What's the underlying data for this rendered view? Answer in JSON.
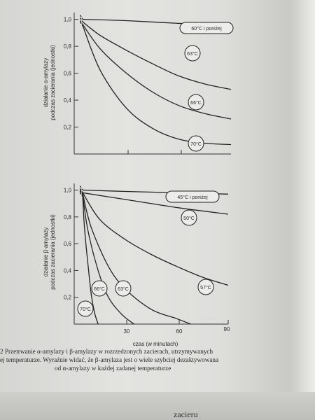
{
  "chart_data": [
    {
      "type": "line",
      "ylabel_lines": [
        "działanie α-amylazy",
        "podczas zacierania (jednostki)"
      ],
      "yticks": [
        "1,0",
        "0,8",
        "0,6",
        "0,4",
        "0,2"
      ],
      "ylim": [
        0,
        1.05
      ],
      "xlim": [
        0,
        90
      ],
      "series": [
        {
          "name": "60°C i poniżej",
          "points": [
            [
              5,
              1.0
            ],
            [
              30,
              0.99
            ],
            [
              60,
              0.97
            ],
            [
              90,
              0.95
            ]
          ]
        },
        {
          "name": "63°C",
          "points": [
            [
              5,
              0.98
            ],
            [
              15,
              0.88
            ],
            [
              30,
              0.77
            ],
            [
              45,
              0.67
            ],
            [
              60,
              0.58
            ],
            [
              75,
              0.52
            ],
            [
              90,
              0.48
            ]
          ]
        },
        {
          "name": "66°C",
          "points": [
            [
              5,
              0.96
            ],
            [
              15,
              0.78
            ],
            [
              30,
              0.6
            ],
            [
              45,
              0.46
            ],
            [
              60,
              0.36
            ],
            [
              75,
              0.3
            ],
            [
              90,
              0.26
            ]
          ]
        },
        {
          "name": "70°C",
          "points": [
            [
              5,
              0.95
            ],
            [
              15,
              0.62
            ],
            [
              30,
              0.34
            ],
            [
              45,
              0.19
            ],
            [
              60,
              0.11
            ],
            [
              75,
              0.08
            ],
            [
              90,
              0.07
            ]
          ]
        }
      ]
    },
    {
      "type": "line",
      "ylabel_lines": [
        "działanie β-amylazy",
        "podczas zacierania (jednostki)"
      ],
      "yticks": [
        "1,0",
        "0,8",
        "0,6",
        "0,4",
        "0,2"
      ],
      "ylim": [
        0,
        1.05
      ],
      "xticks": [
        "30",
        "60",
        "90"
      ],
      "xlim": [
        0,
        90
      ],
      "xlabel": "czas (w minutach)",
      "series": [
        {
          "name": "45°C i poniżej",
          "points": [
            [
              5,
              1.0
            ],
            [
              30,
              0.99
            ],
            [
              60,
              0.98
            ],
            [
              90,
              0.97
            ]
          ]
        },
        {
          "name": "50°C",
          "points": [
            [
              5,
              0.98
            ],
            [
              30,
              0.93
            ],
            [
              60,
              0.87
            ],
            [
              90,
              0.82
            ]
          ]
        },
        {
          "name": "57°C",
          "points": [
            [
              5,
              0.98
            ],
            [
              15,
              0.78
            ],
            [
              30,
              0.63
            ],
            [
              45,
              0.52
            ],
            [
              60,
              0.43
            ],
            [
              75,
              0.35
            ],
            [
              90,
              0.29
            ]
          ]
        },
        {
          "name": "63°C",
          "points": [
            [
              5,
              0.97
            ],
            [
              10,
              0.72
            ],
            [
              20,
              0.43
            ],
            [
              30,
              0.26
            ],
            [
              45,
              0.11
            ],
            [
              60,
              0.04
            ],
            [
              68,
              0.0
            ]
          ]
        },
        {
          "name": "66°C",
          "points": [
            [
              5,
              0.96
            ],
            [
              8,
              0.7
            ],
            [
              14,
              0.4
            ],
            [
              20,
              0.2
            ],
            [
              28,
              0.07
            ],
            [
              35,
              0.0
            ]
          ]
        },
        {
          "name": "70°C",
          "points": [
            [
              5,
              0.95
            ],
            [
              6,
              0.72
            ],
            [
              8,
              0.45
            ],
            [
              10,
              0.22
            ],
            [
              12,
              0.08
            ],
            [
              14,
              0.0
            ]
          ]
        }
      ]
    }
  ],
  "caption": {
    "line1": "2 Przetrwanie α-amylazy i β-amylazy w rozrzedzonych zacierach, utrzymywanych",
    "line2": "ej temperaturze. Wyraźnie widać, że β-amylaza jest o wiele szybciej dezaktywowana",
    "line3": "od α-amylazy w każdej zadanej temperaturze"
  },
  "page_header": "zacieru"
}
